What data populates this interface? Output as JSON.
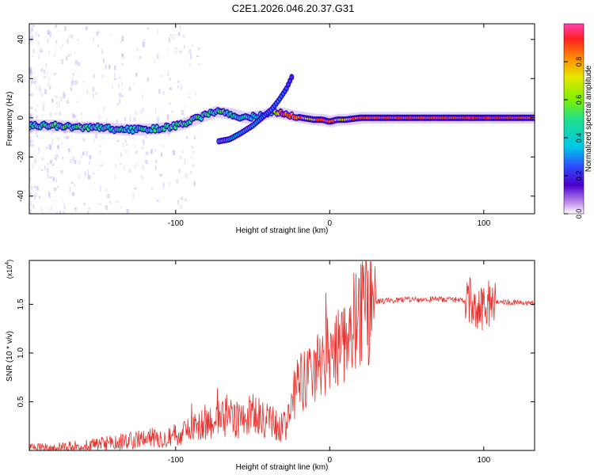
{
  "title": "C2E1.2026.046.20.37.G31",
  "colors": {
    "snr_line": "#e8302c",
    "track_outline": "#3300cc",
    "scatter_haze": "#b99cf2",
    "axis": "#000000"
  },
  "chart_data": [
    {
      "name": "spectrogram",
      "type": "heatmap",
      "title": "C2E1.2026.046.20.37.G31",
      "xlabel": "Height of straight line (km)",
      "ylabel": "Frequency (Hz)",
      "xlim": [
        -195,
        133
      ],
      "ylim": [
        -49,
        48
      ],
      "xticks": [
        -100,
        0,
        100
      ],
      "xtick_labels": [
        "-100",
        "0",
        "100"
      ],
      "yticks": [
        -40,
        -20,
        0,
        20,
        40
      ],
      "ytick_labels": [
        "-40",
        "-20",
        "0",
        "20",
        "40"
      ],
      "main_track": {
        "x": [
          -195,
          -180,
          -165,
          -150,
          -135,
          -120,
          -105,
          -95,
          -85,
          -75,
          -65,
          -55,
          -45,
          -38,
          -30,
          -25,
          -18,
          -10,
          -5,
          0,
          5,
          10,
          20,
          40,
          60,
          80,
          100,
          133
        ],
        "y": [
          -4,
          -4,
          -5,
          -5,
          -6,
          -6,
          -5,
          -3,
          0,
          3,
          2,
          0,
          1,
          3,
          2,
          1,
          0,
          -1,
          -1,
          -2,
          -1,
          -1,
          0,
          0,
          0,
          0,
          0,
          0
        ],
        "amplitude": [
          0.5,
          0.5,
          0.5,
          0.45,
          0.45,
          0.45,
          0.5,
          0.5,
          0.5,
          0.5,
          0.45,
          0.4,
          0.4,
          0.45,
          0.9,
          0.85,
          0.7,
          0.7,
          0.85,
          0.85,
          0.7,
          0.7,
          0.85,
          0.85,
          0.85,
          0.85,
          0.9,
          0.85
        ]
      },
      "secondary_track": {
        "x": [
          -72,
          -65,
          -58,
          -50,
          -44,
          -38,
          -33,
          -28,
          -24
        ],
        "y": [
          -12,
          -11,
          -8,
          -4,
          0,
          4,
          9,
          15,
          22
        ],
        "amplitude": [
          0.4,
          0.4,
          0.35,
          0.35,
          0.3,
          0.3,
          0.3,
          0.25,
          0.2
        ]
      },
      "colorbar": {
        "label": "Normalized spectral amplitude",
        "range": [
          0,
          1
        ],
        "ticks": [
          0.0,
          0.2,
          0.4,
          0.6,
          0.8
        ],
        "tick_labels": [
          "0.0",
          "0.2",
          "0.4",
          "0.6",
          "0.8"
        ]
      }
    },
    {
      "name": "snr",
      "type": "line",
      "xlabel": "Height of straight line (km)",
      "ylabel": "SNR (10 * v/v)",
      "y_multiplier": "(x10",
      "y_multiplier_exp": "4",
      "y_multiplier_close": ")",
      "xlim": [
        -195,
        133
      ],
      "ylim": [
        0,
        1.95
      ],
      "xticks": [
        -100,
        0,
        100
      ],
      "xtick_labels": [
        "-100",
        "0",
        "100"
      ],
      "yticks": [
        0.5,
        1.0,
        1.5
      ],
      "ytick_labels": [
        "0.5",
        "1.0",
        "1.5"
      ],
      "series": [
        {
          "name": "SNR",
          "x": [
            -195,
            -180,
            -160,
            -140,
            -120,
            -100,
            -90,
            -80,
            -70,
            -60,
            -50,
            -40,
            -30,
            -22,
            -15,
            -10,
            -5,
            0,
            5,
            10,
            15,
            20,
            25,
            30,
            40,
            60,
            80,
            90,
            95,
            100,
            105,
            110,
            120,
            133
          ],
          "y": [
            0.02,
            0.03,
            0.05,
            0.08,
            0.12,
            0.16,
            0.2,
            0.3,
            0.35,
            0.32,
            0.36,
            0.3,
            0.22,
            0.6,
            0.75,
            0.85,
            0.9,
            1.0,
            1.1,
            1.2,
            1.3,
            1.4,
            1.48,
            1.52,
            1.54,
            1.55,
            1.55,
            1.53,
            1.5,
            1.45,
            1.52,
            1.53,
            1.52,
            1.51
          ]
        }
      ]
    }
  ]
}
